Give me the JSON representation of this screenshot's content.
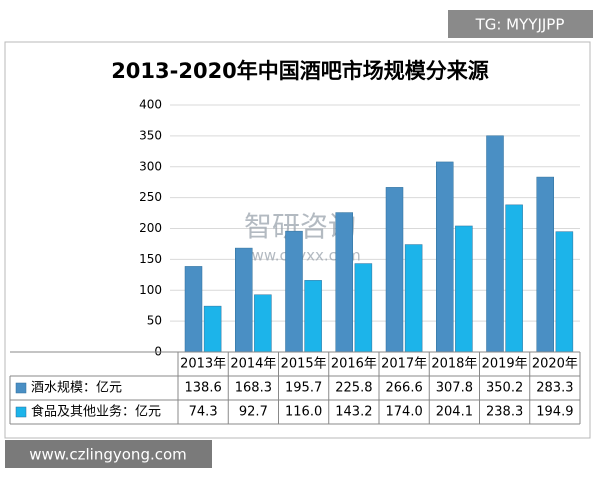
{
  "badge": "TG: MYYJJPP",
  "footer": "www.czlingyong.com",
  "watermark": {
    "name": "智研咨询",
    "url": "www.chyxx.com"
  },
  "chart_data": {
    "type": "bar",
    "title": "2013-2020年中国酒吧市场规模分来源",
    "categories": [
      "2013年",
      "2014年",
      "2015年",
      "2016年",
      "2017年",
      "2018年",
      "2019年",
      "2020年"
    ],
    "series": [
      {
        "name": "酒水规模：亿元",
        "color": "#4a8fc4",
        "values": [
          138.6,
          168.3,
          195.7,
          225.8,
          266.6,
          307.8,
          350.2,
          283.3
        ],
        "value_labels": [
          "138.6",
          "168.3",
          "195.7",
          "225.8",
          "266.6",
          "307.8",
          "350.2",
          "283.3"
        ]
      },
      {
        "name": "食品及其他业务：亿元",
        "color": "#1cb4ea",
        "values": [
          74.3,
          92.7,
          116.0,
          143.2,
          174.0,
          204.1,
          238.3,
          194.9
        ],
        "value_labels": [
          "74.3",
          "92.7",
          "116.0",
          "143.2",
          "174.0",
          "204.1",
          "238.3",
          "194.9"
        ]
      }
    ],
    "ylim": [
      0,
      400
    ],
    "yticks": [
      0,
      50,
      100,
      150,
      200,
      250,
      300,
      350,
      400
    ],
    "grid": true
  }
}
